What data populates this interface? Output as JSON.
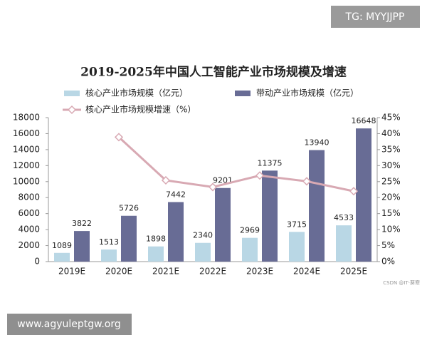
{
  "chart_data": {
    "type": "bar-line",
    "title": "2019-2025年中国人工智能产业市场规模及增速",
    "categories": [
      "2019E",
      "2020E",
      "2021E",
      "2022E",
      "2023E",
      "2024E",
      "2025E"
    ],
    "series": [
      {
        "name": "核心产业市场规模（亿元）",
        "type": "bar",
        "color": "#b9d7e5",
        "values": [
          1089,
          1513,
          1898,
          2340,
          2969,
          3715,
          4533
        ]
      },
      {
        "name": "带动产业市场规模（亿元）",
        "type": "bar",
        "color": "#686c95",
        "values": [
          3822,
          5726,
          7442,
          9201,
          11375,
          13940,
          16648
        ]
      },
      {
        "name": "核心产业市场规模增速（%）",
        "type": "line",
        "axis": "y2",
        "color": "#d8a9b3",
        "values": [
          null,
          38.9,
          25.4,
          23.3,
          26.9,
          25.1,
          22.0
        ]
      }
    ],
    "ylim": [
      0,
      18000
    ],
    "yticks": [
      0,
      2000,
      4000,
      6000,
      8000,
      10000,
      12000,
      14000,
      16000,
      18000
    ],
    "y2lim": [
      0,
      45
    ],
    "y2ticks": [
      {
        "value": 0,
        "label": "0%"
      },
      {
        "value": 5,
        "label": "5%"
      },
      {
        "value": 10,
        "label": "10%"
      },
      {
        "value": 15,
        "label": "15%"
      },
      {
        "value": 20,
        "label": "20%"
      },
      {
        "value": 25,
        "label": "25%"
      },
      {
        "value": 30,
        "label": "30%"
      },
      {
        "value": 35,
        "label": "35%"
      },
      {
        "value": 40,
        "label": "40%"
      },
      {
        "value": 45,
        "label": "45%"
      }
    ],
    "watermarks": [
      "TG: MYYJJPP",
      "www.agyuleptgw.org",
      "CSDN @IT·葵寒"
    ]
  }
}
